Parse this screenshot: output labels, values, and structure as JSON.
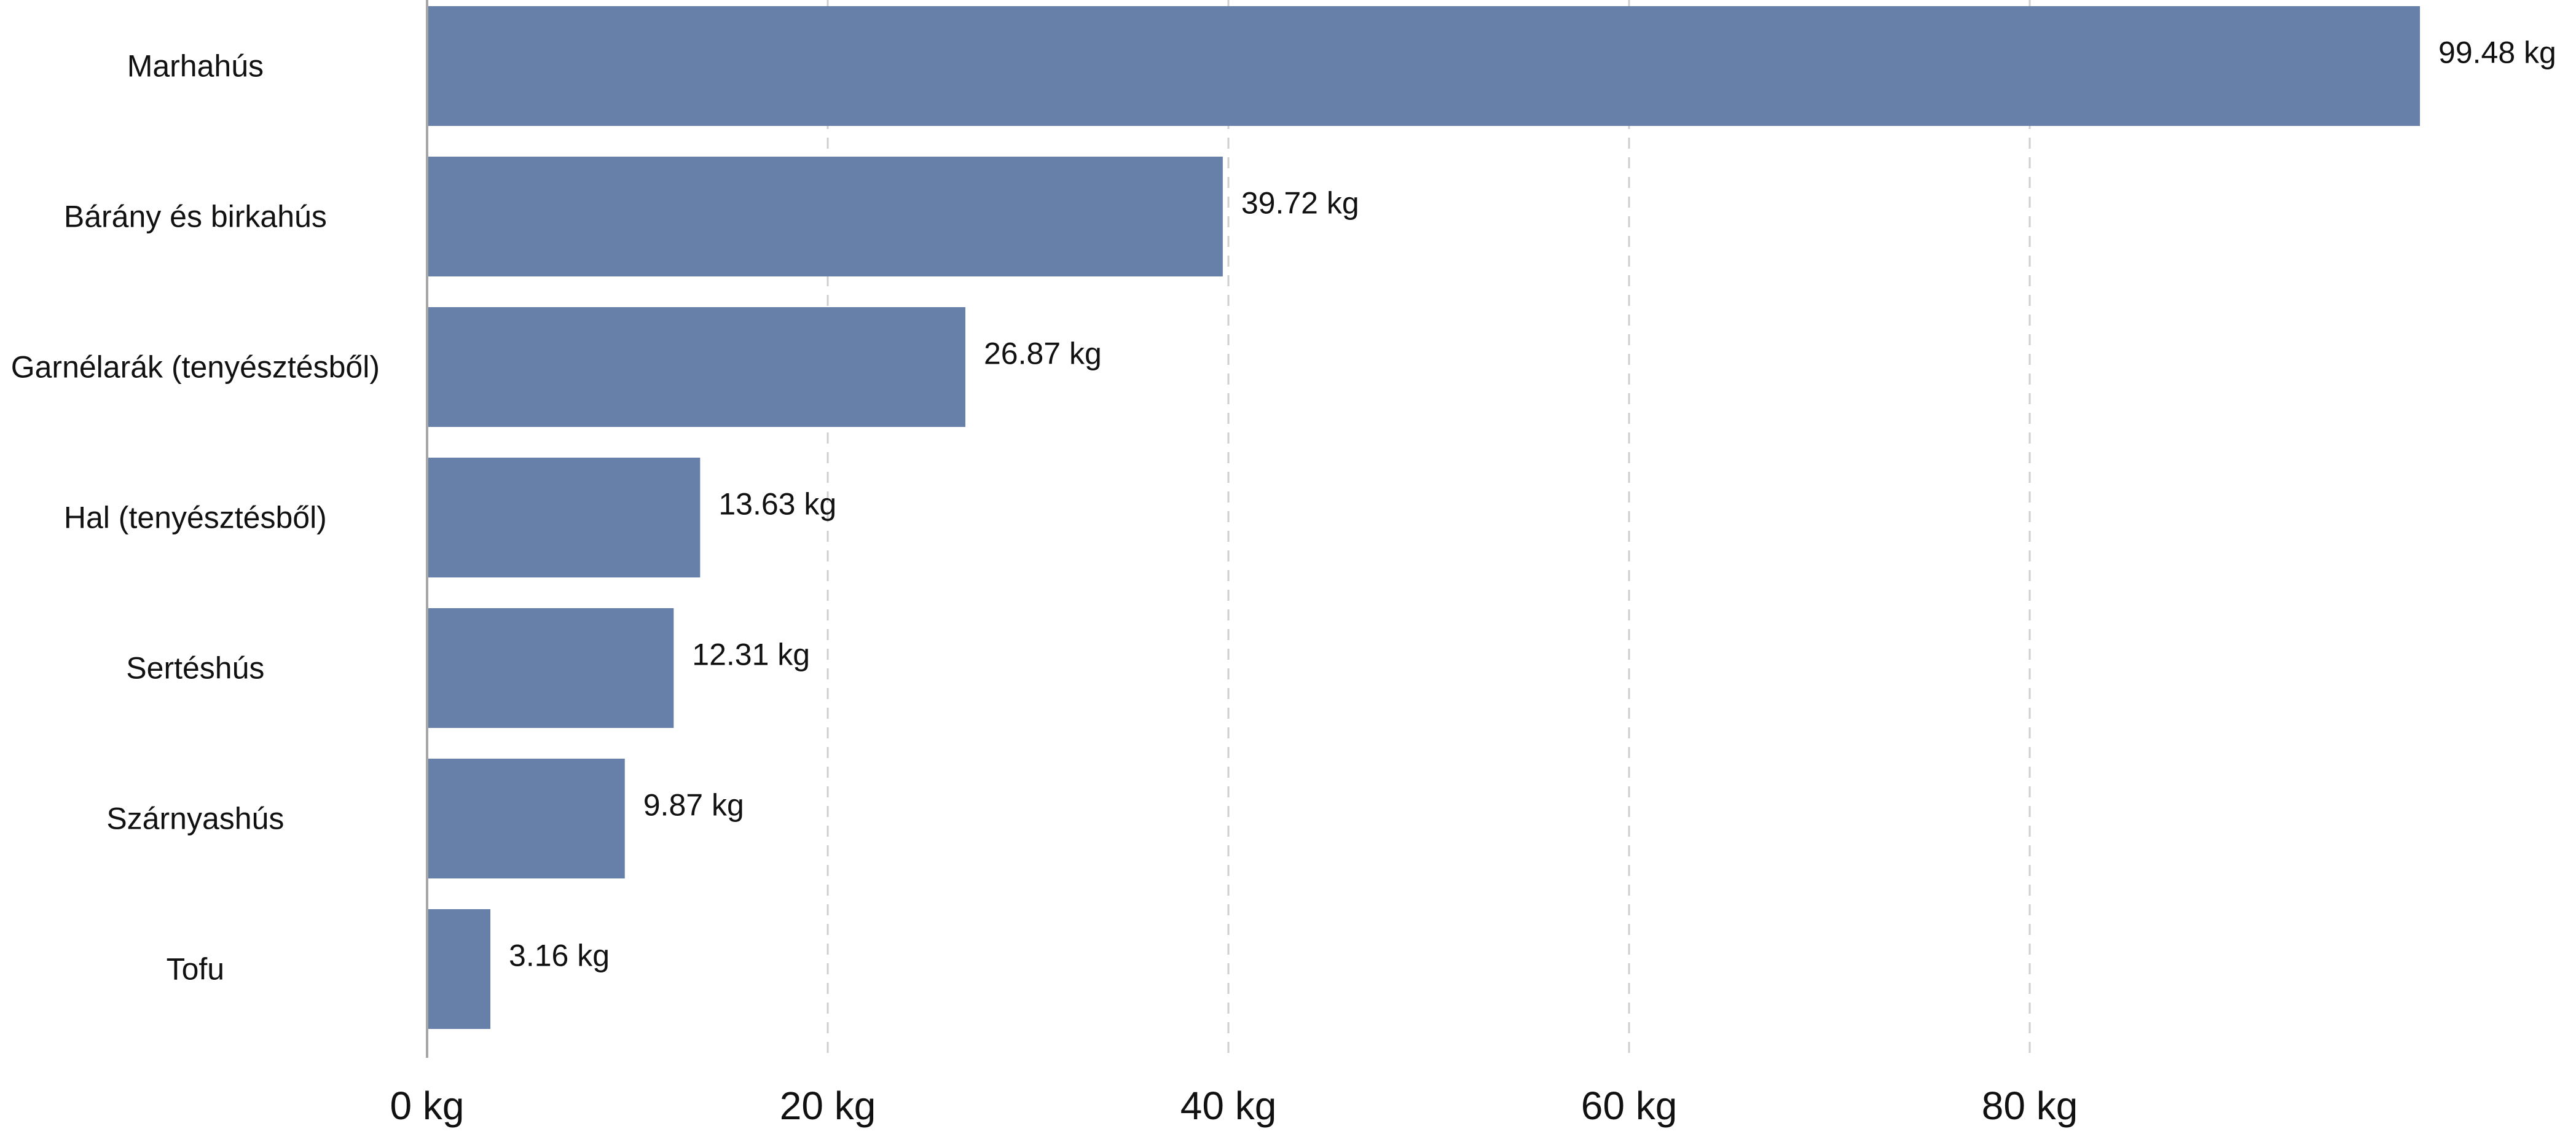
{
  "chart_data": {
    "type": "bar",
    "orientation": "horizontal",
    "categories": [
      "Marhahús",
      "Bárány és birkahús",
      "Garnélarák (tenyésztésből)",
      "Hal (tenyésztésből)",
      "Sertéshús",
      "Szárnyashús",
      "Tofu"
    ],
    "values": [
      99.48,
      39.72,
      26.87,
      13.63,
      12.31,
      9.87,
      3.16
    ],
    "value_labels": [
      "99.48 kg",
      "39.72 kg",
      "26.87 kg",
      "13.63 kg",
      "12.31 kg",
      "9.87 kg",
      "3.16 kg"
    ],
    "xlim": [
      0,
      100
    ],
    "x_ticks": [
      0,
      20,
      40,
      60,
      80
    ],
    "x_tick_labels": [
      "0 kg",
      "20 kg",
      "40 kg",
      "60 kg",
      "80 kg"
    ],
    "grid": "vertical dashed",
    "bar_color": "#6680aa"
  }
}
